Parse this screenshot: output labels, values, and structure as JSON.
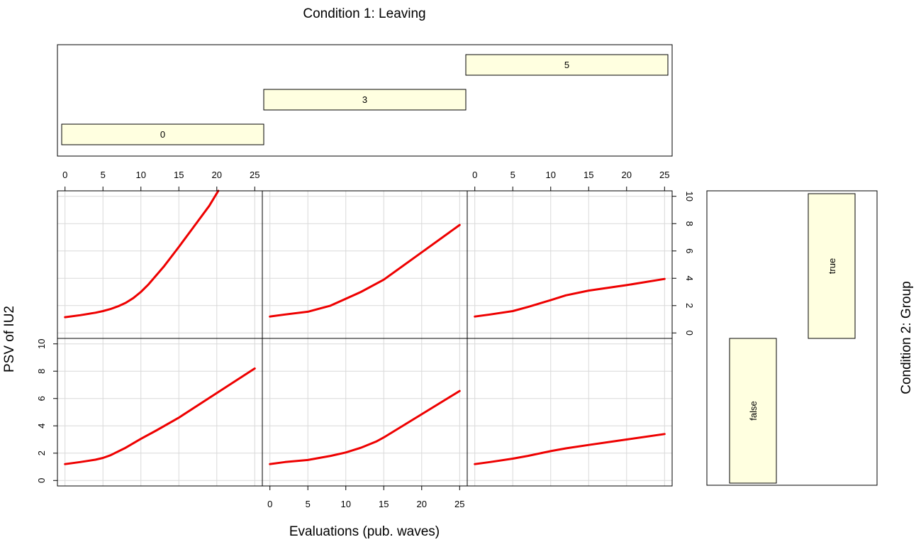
{
  "chart_data": {
    "type": "line",
    "title": "Condition 1: Leaving",
    "xlabel": "Evaluations (pub. waves)",
    "ylabel": "PSV of IU2",
    "right_label": "Condition 2: Group",
    "xlim": [
      -1,
      26
    ],
    "ylim": [
      -0.4,
      10.4
    ],
    "x_ticks": [
      0,
      5,
      10,
      15,
      20,
      25
    ],
    "y_ticks": [
      0,
      2,
      4,
      6,
      8,
      10
    ],
    "grid": true,
    "line_color": "#ee0000",
    "strip_fill": "#ffffe0",
    "leaving_levels": [
      {
        "label": "0",
        "range": [
          0,
          26
        ]
      },
      {
        "label": "3",
        "range": [
          26,
          52
        ]
      },
      {
        "label": "5",
        "range": [
          52,
          78
        ]
      }
    ],
    "group_levels": [
      {
        "label": "false",
        "range": [
          0,
          10.3
        ]
      },
      {
        "label": "true",
        "range": [
          10.3,
          20.6
        ]
      }
    ],
    "panels": [
      {
        "leaving": "0",
        "group": "true",
        "x": [
          0,
          2,
          4,
          5,
          6,
          7,
          8,
          9,
          10,
          11,
          13,
          15,
          17,
          19,
          20.2
        ],
        "y": [
          1.15,
          1.3,
          1.48,
          1.6,
          1.75,
          1.95,
          2.2,
          2.55,
          3.0,
          3.55,
          4.85,
          6.3,
          7.8,
          9.3,
          10.4
        ]
      },
      {
        "leaving": "3",
        "group": "true",
        "x": [
          0,
          2,
          5,
          8,
          12,
          15,
          20,
          25
        ],
        "y": [
          1.2,
          1.35,
          1.55,
          2.0,
          3.0,
          3.9,
          5.9,
          7.9
        ]
      },
      {
        "leaving": "5",
        "group": "true",
        "x": [
          0,
          2,
          5,
          7,
          10,
          12,
          15,
          20,
          25
        ],
        "y": [
          1.2,
          1.35,
          1.6,
          1.9,
          2.4,
          2.75,
          3.1,
          3.5,
          3.95
        ]
      },
      {
        "leaving": "0",
        "group": "false",
        "x": [
          0,
          2,
          4,
          5,
          6,
          8,
          10,
          12,
          15,
          20,
          25
        ],
        "y": [
          1.2,
          1.35,
          1.52,
          1.65,
          1.85,
          2.4,
          3.05,
          3.65,
          4.6,
          6.4,
          8.2
        ]
      },
      {
        "leaving": "3",
        "group": "false",
        "x": [
          0,
          2,
          5,
          8,
          10,
          12,
          14,
          15,
          20,
          25
        ],
        "y": [
          1.2,
          1.35,
          1.5,
          1.8,
          2.05,
          2.4,
          2.85,
          3.15,
          4.85,
          6.55
        ]
      },
      {
        "leaving": "5",
        "group": "false",
        "x": [
          0,
          2,
          5,
          7,
          10,
          12,
          15,
          20,
          25
        ],
        "y": [
          1.2,
          1.35,
          1.6,
          1.8,
          2.15,
          2.35,
          2.6,
          3.0,
          3.4
        ]
      }
    ]
  }
}
